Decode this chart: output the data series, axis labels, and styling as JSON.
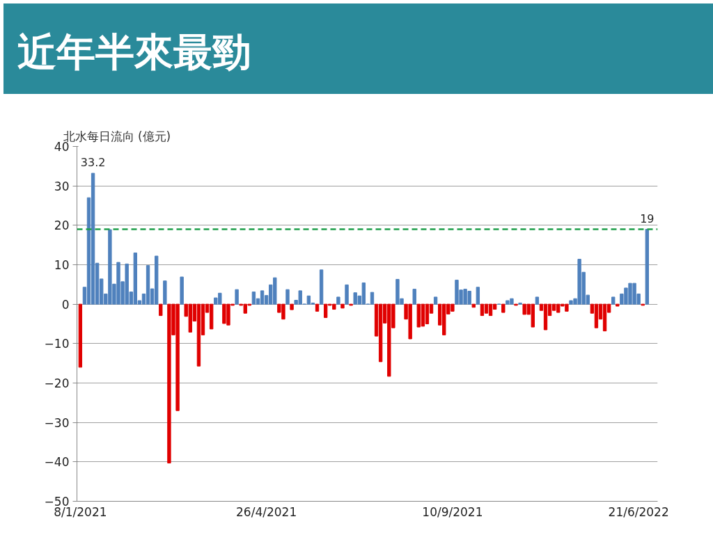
{
  "chart_data": {
    "type": "bar",
    "title": "近年半來最勁",
    "ylabel": "北水每日流向 (億元)",
    "categories": [
      "8/1/2021",
      null,
      null,
      null,
      null,
      null,
      null,
      null,
      null,
      null,
      null,
      null,
      null,
      null,
      null,
      null,
      null,
      null,
      null,
      null,
      null,
      null,
      null,
      null,
      null,
      null,
      null,
      null,
      null,
      null,
      null,
      null,
      null,
      null,
      null,
      null,
      null,
      null,
      null,
      null,
      null,
      null,
      null,
      null,
      "26/4/2021",
      null,
      null,
      null,
      null,
      null,
      null,
      null,
      null,
      null,
      null,
      null,
      null,
      null,
      null,
      null,
      null,
      null,
      null,
      null,
      null,
      null,
      null,
      null,
      null,
      null,
      null,
      null,
      null,
      null,
      null,
      null,
      null,
      null,
      null,
      null,
      null,
      null,
      null,
      null,
      null,
      null,
      null,
      null,
      "10/9/2021",
      null,
      null,
      null,
      null,
      null,
      null,
      null,
      null,
      null,
      null,
      null,
      null,
      null,
      null,
      null,
      null,
      null,
      null,
      null,
      null,
      null,
      null,
      null,
      null,
      null,
      null,
      null,
      null,
      null,
      null,
      null,
      null,
      null,
      null,
      null,
      null,
      null,
      null,
      null,
      null,
      null,
      null,
      null,
      "21/6/2022",
      null,
      null
    ],
    "values": [
      -16,
      4.3,
      27,
      33.2,
      10.4,
      6.4,
      2.6,
      18.9,
      5.1,
      10.6,
      5.7,
      10.2,
      3.1,
      13,
      0.9,
      2.6,
      9.8,
      3.9,
      12.2,
      -2.9,
      5.9,
      -40.3,
      -7.8,
      -27,
      6.9,
      -3.1,
      -7.1,
      -4.3,
      -15.7,
      -7.8,
      -2.1,
      -6.3,
      1.6,
      2.8,
      -4.9,
      -5.3,
      -0.3,
      3.7,
      -0.3,
      -2.3,
      -0.3,
      3.1,
      1.4,
      3.4,
      2.2,
      4.9,
      6.7,
      -2.1,
      -3.8,
      3.7,
      -1.4,
      1.0,
      3.4,
      0,
      2.1,
      0.3,
      -1.8,
      8.7,
      -3.4,
      -0.3,
      -1.3,
      1.8,
      -1.0,
      4.9,
      -0.3,
      2.9,
      2.1,
      5.4,
      0,
      3.0,
      -8.1,
      -14.6,
      -4.8,
      -18.3,
      -6.0,
      6.3,
      1.4,
      -3.8,
      -8.8,
      3.8,
      -5.8,
      -5.6,
      -5.0,
      -2.3,
      1.8,
      -5.3,
      -7.8,
      -2.5,
      -1.8,
      6.1,
      3.6,
      3.8,
      3.3,
      -0.8,
      4.3,
      -2.9,
      -2.3,
      -2.9,
      -1.3,
      0,
      -2.1,
      0.9,
      1.4,
      -0.3,
      0.3,
      -2.6,
      -2.6,
      -5.8,
      1.8,
      -1.6,
      -6.5,
      -2.9,
      -1.6,
      -2.1,
      -0.5,
      -1.8,
      0.9,
      1.4,
      11.4,
      8.1,
      2.3,
      -2.3,
      -6.0,
      -3.8,
      -6.8,
      -2.1,
      1.8,
      -0.5,
      2.6,
      4.1,
      5.3,
      5.3,
      2.6,
      -0.3,
      19
    ],
    "colors": [
      "#e00000",
      "#4f81bd",
      "#4f81bd",
      "#4f81bd",
      "#4f81bd",
      "#4f81bd",
      "#4f81bd",
      "#4f81bd",
      "#4f81bd",
      "#4f81bd",
      "#4f81bd",
      "#4f81bd",
      "#4f81bd",
      "#4f81bd",
      "#4f81bd",
      "#4f81bd",
      "#4f81bd",
      "#4f81bd",
      "#4f81bd",
      "#e00000",
      "#4f81bd",
      "#e00000",
      "#e00000",
      "#e00000",
      "#4f81bd",
      "#e00000",
      "#e00000",
      "#e00000",
      "#e00000",
      "#e00000",
      "#e00000",
      "#e00000",
      "#4f81bd",
      "#4f81bd",
      "#e00000",
      "#e00000",
      "#e00000",
      "#4f81bd",
      "#e00000",
      "#e00000",
      "#e00000",
      "#4f81bd",
      "#4f81bd",
      "#4f81bd",
      "#4f81bd",
      "#4f81bd",
      "#4f81bd",
      "#e00000",
      "#e00000",
      "#4f81bd",
      "#e00000",
      "#4f81bd",
      "#4f81bd",
      "#4f81bd",
      "#4f81bd",
      "#4f81bd",
      "#e00000",
      "#4f81bd",
      "#e00000",
      "#e00000",
      "#e00000",
      "#4f81bd",
      "#e00000",
      "#4f81bd",
      "#e00000",
      "#4f81bd",
      "#4f81bd",
      "#4f81bd",
      "#4f81bd",
      "#4f81bd",
      "#e00000",
      "#e00000",
      "#e00000",
      "#e00000",
      "#e00000",
      "#4f81bd",
      "#4f81bd",
      "#e00000",
      "#e00000",
      "#4f81bd",
      "#e00000",
      "#e00000",
      "#e00000",
      "#e00000",
      "#4f81bd",
      "#e00000",
      "#e00000",
      "#e00000",
      "#e00000",
      "#4f81bd",
      "#4f81bd",
      "#4f81bd",
      "#4f81bd",
      "#e00000",
      "#4f81bd",
      "#e00000",
      "#e00000",
      "#e00000",
      "#e00000",
      "#4f81bd",
      "#e00000",
      "#4f81bd",
      "#4f81bd",
      "#e00000",
      "#4f81bd",
      "#e00000",
      "#e00000",
      "#e00000",
      "#4f81bd",
      "#e00000",
      "#e00000",
      "#e00000",
      "#e00000",
      "#e00000",
      "#e00000",
      "#e00000",
      "#4f81bd",
      "#4f81bd",
      "#4f81bd",
      "#4f81bd",
      "#4f81bd",
      "#e00000",
      "#e00000",
      "#e00000",
      "#e00000",
      "#e00000",
      "#4f81bd",
      "#e00000",
      "#4f81bd",
      "#4f81bd",
      "#4f81bd",
      "#4f81bd",
      "#4f81bd",
      "#e00000",
      "#4f81bd"
    ],
    "value_labels": [
      null,
      null,
      null,
      "33.2",
      null,
      null,
      null,
      null,
      null,
      null,
      null,
      null,
      null,
      null,
      null,
      null,
      null,
      null,
      null,
      null,
      null,
      null,
      null,
      null,
      null,
      null,
      null,
      null,
      null,
      null,
      null,
      null,
      null,
      null,
      null,
      null,
      null,
      null,
      null,
      null,
      null,
      null,
      null,
      null,
      null,
      null,
      null,
      null,
      null,
      null,
      null,
      null,
      null,
      null,
      null,
      null,
      null,
      null,
      null,
      null,
      null,
      null,
      null,
      null,
      null,
      null,
      null,
      null,
      null,
      null,
      null,
      null,
      null,
      null,
      null,
      null,
      null,
      null,
      null,
      null,
      null,
      null,
      null,
      null,
      null,
      null,
      null,
      null,
      null,
      null,
      null,
      null,
      null,
      null,
      null,
      null,
      null,
      null,
      null,
      null,
      null,
      null,
      null,
      null,
      null,
      null,
      null,
      null,
      null,
      null,
      null,
      null,
      null,
      null,
      null,
      null,
      null,
      null,
      null,
      null,
      null,
      null,
      null,
      null,
      null,
      null,
      null,
      null,
      null,
      null,
      null,
      null,
      null,
      null,
      "19"
    ],
    "ylim": [
      -50,
      40
    ],
    "yticks": [
      -50,
      -40,
      -30,
      -20,
      -10,
      0,
      10,
      20,
      30,
      40
    ],
    "ref_lines": [
      {
        "axis": "y",
        "value": 19,
        "color": "#1e9e4a",
        "line_style": "dashed"
      }
    ],
    "grid": "y"
  }
}
